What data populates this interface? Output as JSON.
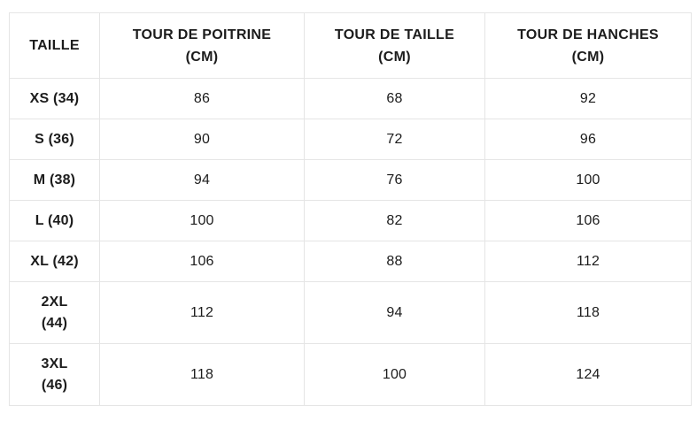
{
  "chart_data": {
    "type": "table",
    "columns": [
      "TAILLE",
      "TOUR DE POITRINE (CM)",
      "TOUR DE TAILLE (CM)",
      "TOUR DE HANCHES (CM)"
    ],
    "rows": [
      [
        "XS (34)",
        86,
        68,
        92
      ],
      [
        "S (36)",
        90,
        72,
        96
      ],
      [
        "M (38)",
        94,
        76,
        100
      ],
      [
        "L (40)",
        100,
        82,
        106
      ],
      [
        "XL (42)",
        106,
        88,
        112
      ],
      [
        "2XL (44)",
        112,
        94,
        118
      ],
      [
        "3XL (46)",
        118,
        100,
        124
      ]
    ]
  },
  "display": {
    "headers": [
      "TAILLE",
      "TOUR DE POITRINE\n(CM)",
      "TOUR DE TAILLE\n(CM)",
      "TOUR DE HANCHES\n(CM)"
    ],
    "rows": [
      {
        "size": "XS (34)",
        "values": [
          "86",
          "68",
          "92"
        ]
      },
      {
        "size": "S (36)",
        "values": [
          "90",
          "72",
          "96"
        ]
      },
      {
        "size": "M (38)",
        "values": [
          "94",
          "76",
          "100"
        ]
      },
      {
        "size": "L (40)",
        "values": [
          "100",
          "82",
          "106"
        ]
      },
      {
        "size": "XL (42)",
        "values": [
          "106",
          "88",
          "112"
        ]
      },
      {
        "size": "2XL\n(44)",
        "values": [
          "112",
          "94",
          "118"
        ]
      },
      {
        "size": "3XL\n(46)",
        "values": [
          "118",
          "100",
          "124"
        ]
      }
    ]
  },
  "colors": {
    "border": "#e5e5e5",
    "text": "#1c1c1c",
    "background": "#ffffff"
  }
}
